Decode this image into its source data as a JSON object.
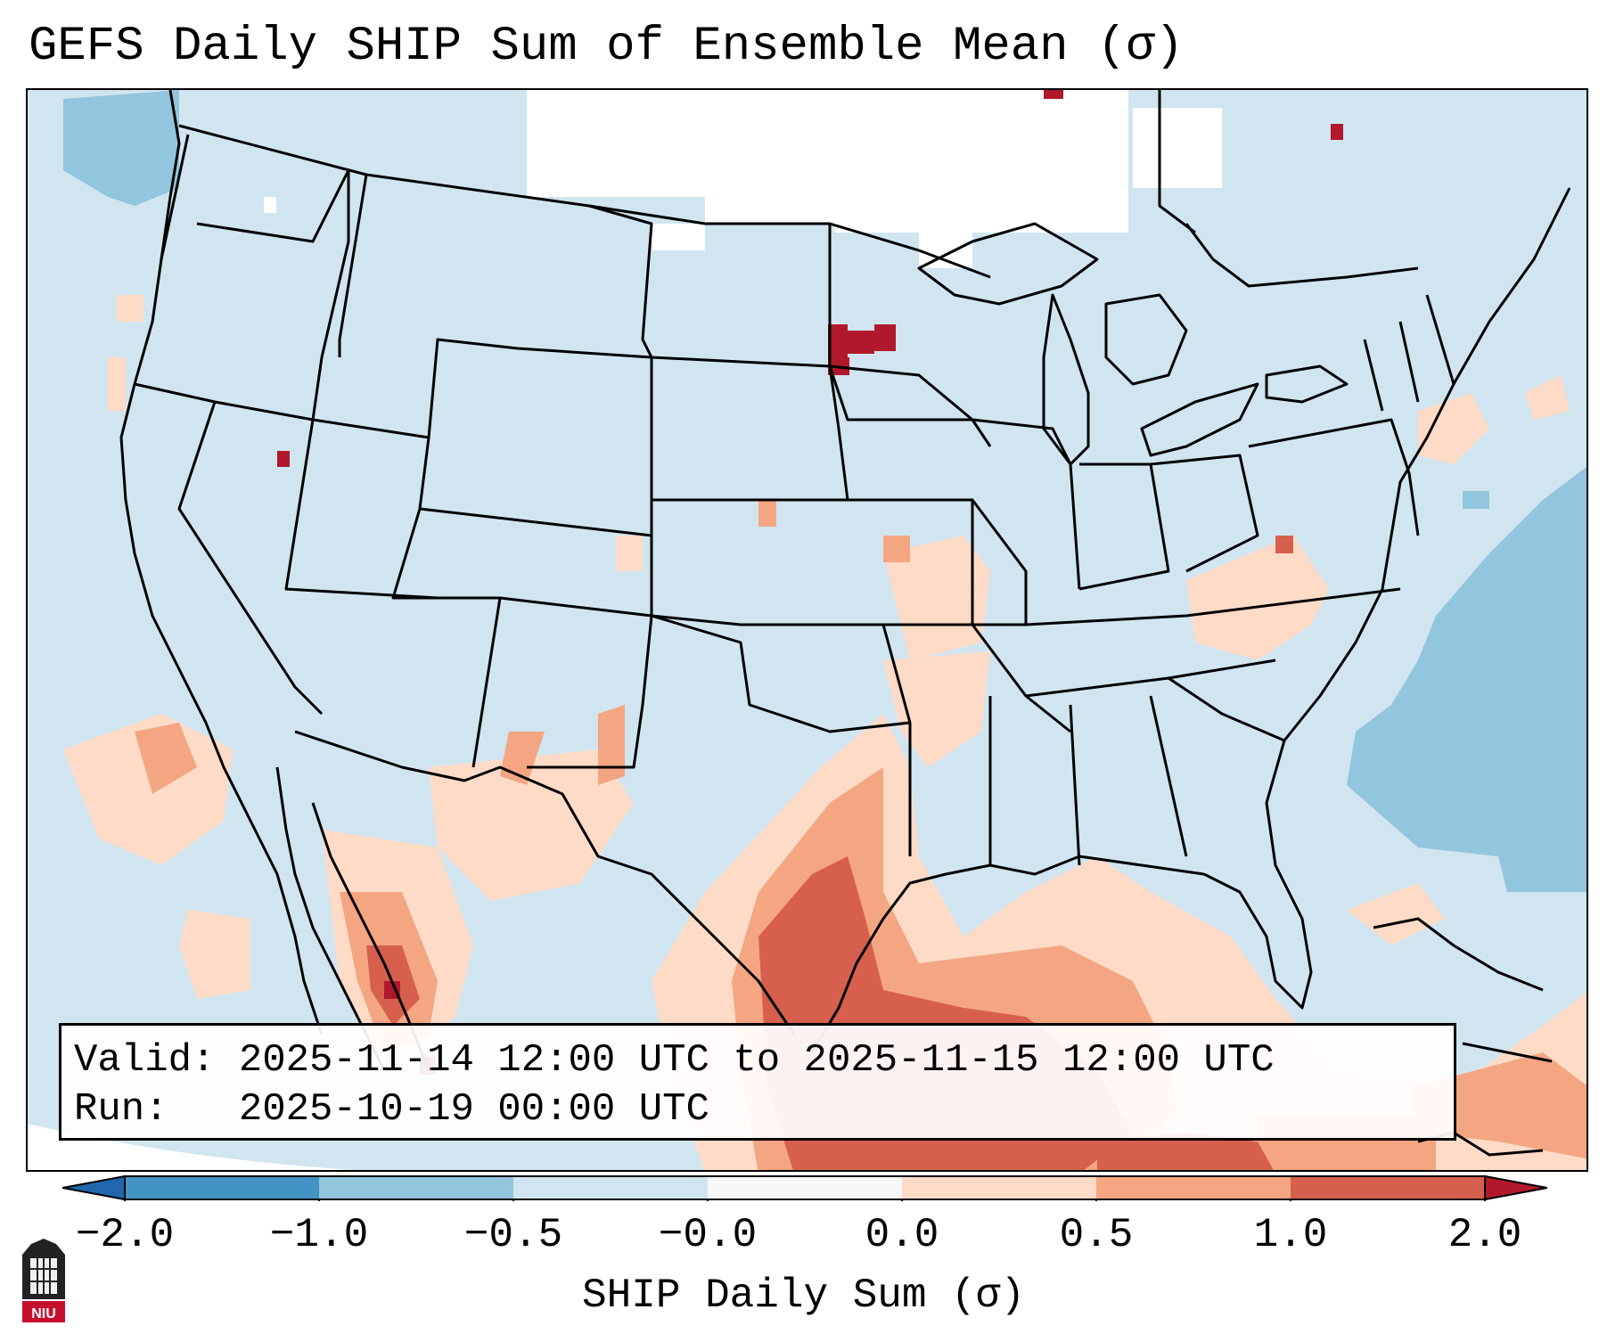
{
  "title": "GEFS Daily SHIP Sum of Ensemble Mean (σ)",
  "info": {
    "valid_label": "Valid:",
    "valid_text": "2025-11-14 12:00 UTC to 2025-11-15 12:00 UTC",
    "run_label": "Run:",
    "run_text": "2025-10-19 00:00 UTC"
  },
  "colorbar": {
    "label": "SHIP Daily Sum (σ)",
    "ticks": [
      "−2.0",
      "−1.0",
      "−0.5",
      "−0.0",
      "0.0",
      "0.5",
      "1.0",
      "2.0"
    ],
    "bins": [
      {
        "min": -2.0,
        "max": -1.0,
        "color": "#4393c3"
      },
      {
        "min": -1.0,
        "max": -0.5,
        "color": "#92c5de"
      },
      {
        "min": -0.5,
        "max": -0.0,
        "color": "#d1e5f0"
      },
      {
        "min": -0.0,
        "max": 0.0,
        "color": "#f7f7f7"
      },
      {
        "min": 0.0,
        "max": 0.5,
        "color": "#fddbc7"
      },
      {
        "min": 0.5,
        "max": 1.0,
        "color": "#f4a582"
      },
      {
        "min": 1.0,
        "max": 2.0,
        "color": "#d6604d"
      }
    ],
    "extend_low_color": "#2166ac",
    "extend_high_color": "#b2182b"
  },
  "logo": {
    "text": "NIU"
  }
}
